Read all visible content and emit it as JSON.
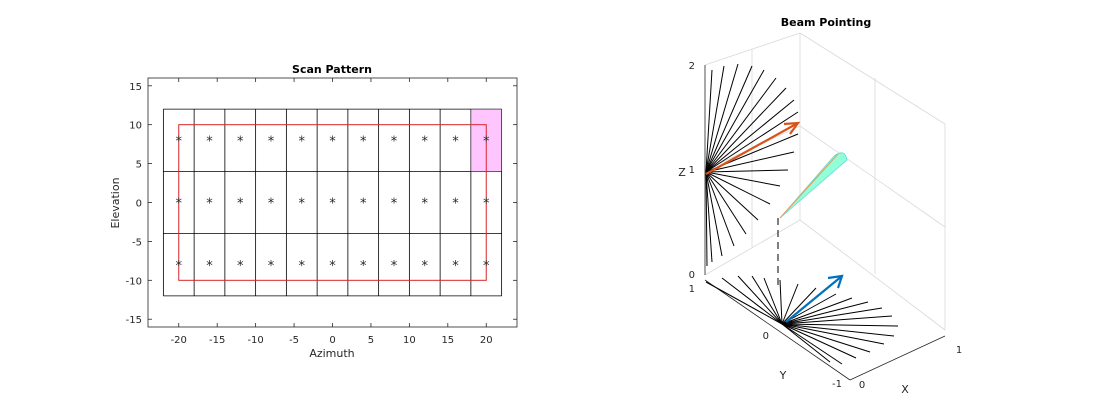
{
  "chart_data": [
    {
      "type": "scatter",
      "title": "Scan Pattern",
      "xlabel": "Azimuth",
      "ylabel": "Elevation",
      "xlim": [
        -24,
        24
      ],
      "ylim": [
        -16,
        16
      ],
      "xticks": [
        "-20",
        "-15",
        "-10",
        "-5",
        "0",
        "5",
        "10",
        "15",
        "20"
      ],
      "yticks": [
        "15",
        "10",
        "5",
        "0",
        "-5",
        "-10",
        "-15"
      ],
      "grid": false,
      "beam_azimuths": [
        -22,
        -18,
        -14,
        -10,
        -6,
        -2,
        2,
        6,
        10,
        14,
        18,
        22
      ],
      "beam_elevations": [
        -12,
        -4,
        4,
        12
      ],
      "points": {
        "azimuth": [
          -20,
          -16,
          -12,
          -8,
          -4,
          0,
          4,
          8,
          12,
          16,
          20
        ],
        "elevation": [
          8,
          0,
          -8
        ],
        "marker": "*",
        "color": "#0072bd"
      },
      "scan_limits": {
        "azimuth": [
          -20,
          20
        ],
        "elevation": [
          -10,
          10
        ],
        "color": "#d62728"
      },
      "current_beam": {
        "azimuth": [
          18,
          22
        ],
        "elevation": [
          4,
          12
        ],
        "color": "#ff7fff"
      }
    },
    {
      "type": "3d-line",
      "title": "Beam Pointing",
      "xlabel": "X",
      "ylabel": "Y",
      "zlabel": "Z",
      "xticks": [
        "0",
        "1"
      ],
      "yticks": [
        "-1",
        "0",
        "1"
      ],
      "zticks": [
        "0",
        "1",
        "2"
      ],
      "colors": {
        "fan_lines": "#000000",
        "elevation_arrow": "#d95319",
        "azimuth_arrow": "#0072bd",
        "beam_cone": "#7fffd4"
      }
    }
  ]
}
